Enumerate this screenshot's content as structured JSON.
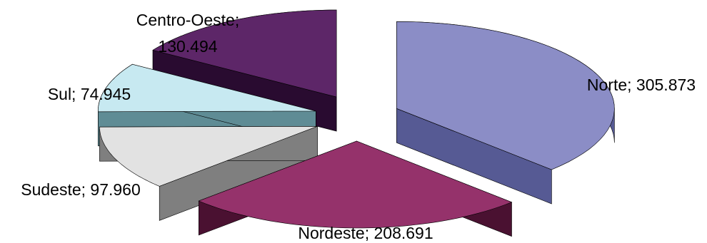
{
  "chart_data": {
    "type": "pie",
    "style": "3d-exploded",
    "title": "",
    "categories": [
      "Norte",
      "Nordeste",
      "Sudeste",
      "Sul",
      "Centro-Oeste"
    ],
    "values": [
      305.873,
      208.691,
      97.96,
      74.945,
      130.494
    ],
    "labels": [
      {
        "lines": [
          "Norte; 305.873"
        ]
      },
      {
        "lines": [
          "Nordeste; 208.691"
        ]
      },
      {
        "lines": [
          "Sudeste; 97.960"
        ]
      },
      {
        "lines": [
          "Sul; 74.945"
        ]
      },
      {
        "lines": [
          "Centro-Oeste;",
          "130.494"
        ]
      }
    ],
    "colors": {
      "Norte": {
        "top": "#8b8dc6",
        "side": "#565a94"
      },
      "Nordeste": {
        "top": "#95326b",
        "side": "#4a1131"
      },
      "Sudeste": {
        "top": "#e2e2e2",
        "side": "#7f7f7f"
      },
      "Sul": {
        "top": "#c7e9f1",
        "side": "#5f8c95"
      },
      "Centro-Oeste": {
        "top": "#5d2668",
        "side": "#290b30"
      }
    }
  }
}
